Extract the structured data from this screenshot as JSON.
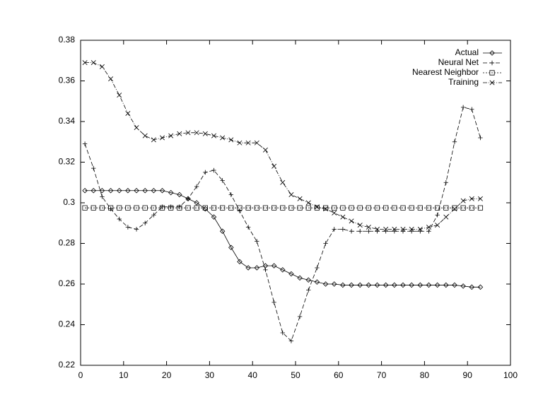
{
  "chart_data": {
    "type": "line",
    "x": [
      1,
      3,
      5,
      7,
      9,
      11,
      13,
      15,
      17,
      19,
      21,
      23,
      25,
      27,
      29,
      31,
      33,
      35,
      37,
      39,
      41,
      43,
      45,
      47,
      49,
      51,
      53,
      55,
      57,
      59,
      61,
      63,
      65,
      67,
      69,
      71,
      73,
      75,
      77,
      79,
      81,
      83,
      85,
      87,
      89,
      91,
      93
    ],
    "series": [
      {
        "name": "Actual",
        "color": "#000000",
        "marker": "diamond",
        "dash": "none",
        "values": [
          0.306,
          0.306,
          0.306,
          0.306,
          0.306,
          0.306,
          0.306,
          0.306,
          0.306,
          0.306,
          0.305,
          0.304,
          0.302,
          0.3,
          0.297,
          0.293,
          0.286,
          0.278,
          0.271,
          0.268,
          0.268,
          0.269,
          0.269,
          0.267,
          0.265,
          0.263,
          0.262,
          0.261,
          0.26,
          0.26,
          0.2595,
          0.2595,
          0.2595,
          0.2595,
          0.2595,
          0.2595,
          0.2595,
          0.2595,
          0.2595,
          0.2595,
          0.2595,
          0.2595,
          0.2595,
          0.2595,
          0.259,
          0.2585,
          0.2585
        ]
      },
      {
        "name": "Neural Net",
        "color": "#000000",
        "marker": "plus",
        "dash": "6,3",
        "values": [
          0.329,
          0.317,
          0.303,
          0.297,
          0.292,
          0.288,
          0.287,
          0.29,
          0.294,
          0.298,
          0.298,
          0.298,
          0.302,
          0.308,
          0.315,
          0.316,
          0.311,
          0.304,
          0.296,
          0.288,
          0.281,
          0.267,
          0.251,
          0.236,
          0.232,
          0.244,
          0.257,
          0.268,
          0.28,
          0.287,
          0.287,
          0.286,
          0.286,
          0.286,
          0.286,
          0.286,
          0.286,
          0.286,
          0.286,
          0.286,
          0.286,
          0.294,
          0.31,
          0.33,
          0.347,
          0.346,
          0.332
        ]
      },
      {
        "name": "Nearest Neighbor",
        "color": "#000000",
        "marker": "square",
        "dash": "2,2",
        "values": [
          0.2975,
          0.2975,
          0.2975,
          0.2975,
          0.2975,
          0.2975,
          0.2975,
          0.2975,
          0.2975,
          0.2975,
          0.2975,
          0.2975,
          0.2975,
          0.2975,
          0.2975,
          0.2975,
          0.2975,
          0.2975,
          0.2975,
          0.2975,
          0.2975,
          0.2975,
          0.2975,
          0.2975,
          0.2975,
          0.2975,
          0.2975,
          0.2975,
          0.2975,
          0.2975,
          0.2975,
          0.2975,
          0.2975,
          0.2975,
          0.2975,
          0.2975,
          0.2975,
          0.2975,
          0.2975,
          0.2975,
          0.2975,
          0.2975,
          0.2975,
          0.2975,
          0.2975,
          0.2975,
          0.2975
        ]
      },
      {
        "name": "Training",
        "color": "#000000",
        "marker": "cross",
        "dash": "6,2,1,2",
        "values": [
          0.369,
          0.369,
          0.367,
          0.361,
          0.353,
          0.344,
          0.337,
          0.333,
          0.331,
          0.332,
          0.333,
          0.334,
          0.3345,
          0.3345,
          0.334,
          0.333,
          0.332,
          0.331,
          0.3295,
          0.3295,
          0.3295,
          0.326,
          0.318,
          0.31,
          0.304,
          0.302,
          0.3,
          0.298,
          0.297,
          0.295,
          0.293,
          0.291,
          0.289,
          0.288,
          0.287,
          0.287,
          0.287,
          0.287,
          0.287,
          0.287,
          0.288,
          0.289,
          0.293,
          0.297,
          0.301,
          0.302,
          0.302
        ]
      }
    ],
    "xlim": [
      0,
      100
    ],
    "xticks": [
      0,
      10,
      20,
      30,
      40,
      50,
      60,
      70,
      80,
      90,
      100
    ],
    "ylim": [
      0.22,
      0.38
    ],
    "yticks": [
      0.22,
      0.24,
      0.26,
      0.28,
      0.3,
      0.32,
      0.34,
      0.36,
      0.38
    ],
    "legend": "top-right",
    "grid": false
  }
}
